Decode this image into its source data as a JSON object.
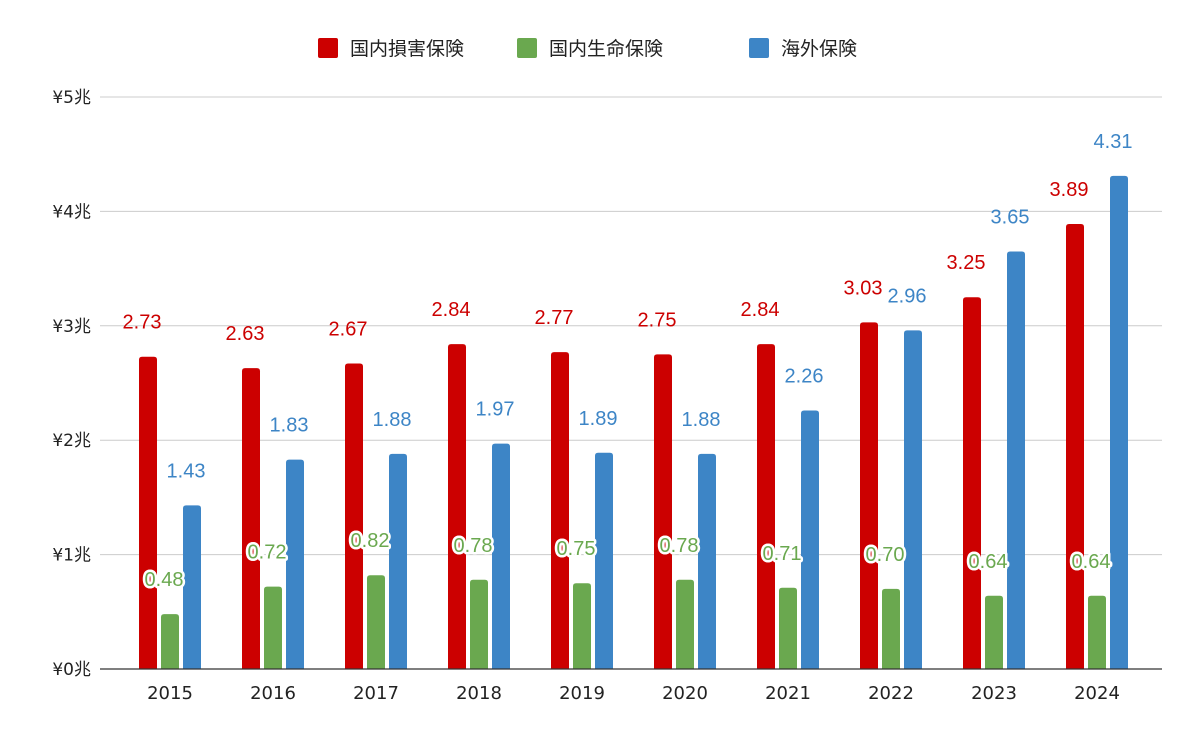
{
  "chart_data": {
    "type": "bar",
    "categories": [
      "2015",
      "2016",
      "2017",
      "2018",
      "2019",
      "2020",
      "2021",
      "2022",
      "2023",
      "2024"
    ],
    "series": [
      {
        "name": "国内損害保険",
        "color": "#cc0000",
        "values": [
          2.73,
          2.63,
          2.67,
          2.84,
          2.77,
          2.75,
          2.84,
          3.03,
          3.25,
          3.89
        ],
        "labels": [
          "2.73",
          "2.63",
          "2.67",
          "2.84",
          "2.77",
          "2.75",
          "2.84",
          "3.03",
          "3.25",
          "3.89"
        ]
      },
      {
        "name": "国内生命保険",
        "color": "#6aa84f",
        "values": [
          0.48,
          0.72,
          0.82,
          0.78,
          0.75,
          0.78,
          0.71,
          0.7,
          0.64,
          0.64
        ],
        "labels": [
          "0.48",
          "0.72",
          "0.82",
          "0.78",
          "0.75",
          "0.78",
          "0.71",
          "0.70",
          "0.64",
          "0.64"
        ]
      },
      {
        "name": "海外保険",
        "color": "#3d85c6",
        "values": [
          1.43,
          1.83,
          1.88,
          1.97,
          1.89,
          1.88,
          2.26,
          2.96,
          3.65,
          4.31
        ],
        "labels": [
          "1.43",
          "1.83",
          "1.88",
          "1.97",
          "1.89",
          "1.88",
          "2.26",
          "2.96",
          "3.65",
          "4.31"
        ]
      }
    ],
    "ylim": [
      0,
      5
    ],
    "yticks": [
      {
        "value": 0,
        "label": "¥0兆"
      },
      {
        "value": 1,
        "label": "¥1兆"
      },
      {
        "value": 2,
        "label": "¥2兆"
      },
      {
        "value": 3,
        "label": "¥3兆"
      },
      {
        "value": 4,
        "label": "¥4兆"
      },
      {
        "value": 5,
        "label": "¥5兆"
      }
    ],
    "title": "",
    "xlabel": "",
    "ylabel": "",
    "grid": true,
    "legend_position": "top-center"
  }
}
